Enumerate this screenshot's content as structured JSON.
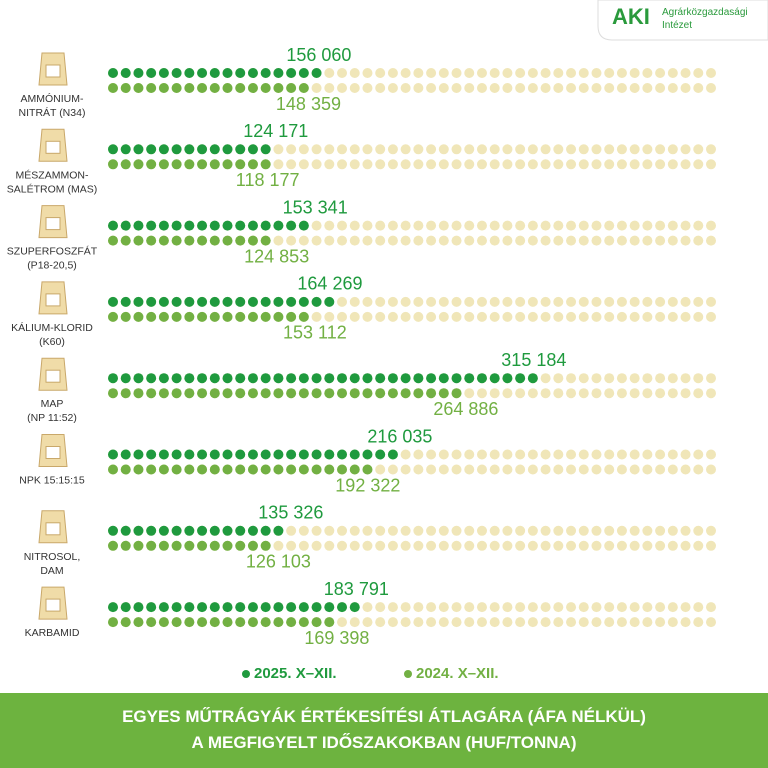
{
  "logo": {
    "mark": "AKI",
    "name": "Agrárközgazdasági\nIntézet"
  },
  "chart_data": {
    "type": "dot-bar",
    "title": "EGYES MŰTRÁGYÁK ÉRTÉKESÍTÉSI ÁTLAGÁRA (ÁFA NÉLKÜL)\nA MEGFIGYELT IDŐSZAKOKBAN (HUF/TONNA)",
    "categories": [
      "AMMÓNIUM-\nNITRÁT (N34)",
      "MÉSZAMMON-\nSALÉTROM (MAS)",
      "SZUPERFOSZFÁT\n(P18-20,5)",
      "KÁLIUM-KLORID\n(K60)",
      "MAP\n(NP 11:52)",
      "NPK 15:15:15",
      "NITROSOL,\nDAM",
      "KARBAMID"
    ],
    "xlim": [
      0,
      450000
    ],
    "series": [
      {
        "name": "2025. X–XII.",
        "color": "#1f9a3e",
        "values": [
          156060,
          124171,
          153341,
          164269,
          315184,
          216035,
          135326,
          183791
        ],
        "value_labels": [
          "156 060",
          "124 171",
          "153 341",
          "164 269",
          "315 184",
          "216 035",
          "135 326",
          "183 791"
        ]
      },
      {
        "name": "2024. X–XII.",
        "color": "#72b043",
        "values": [
          148359,
          118177,
          124853,
          153112,
          264886,
          192322,
          126103,
          169398
        ],
        "value_labels": [
          "148 359",
          "118 177",
          "124 853",
          "153 112",
          "264 886",
          "192 322",
          "126 103",
          "169 398"
        ]
      }
    ]
  }
}
